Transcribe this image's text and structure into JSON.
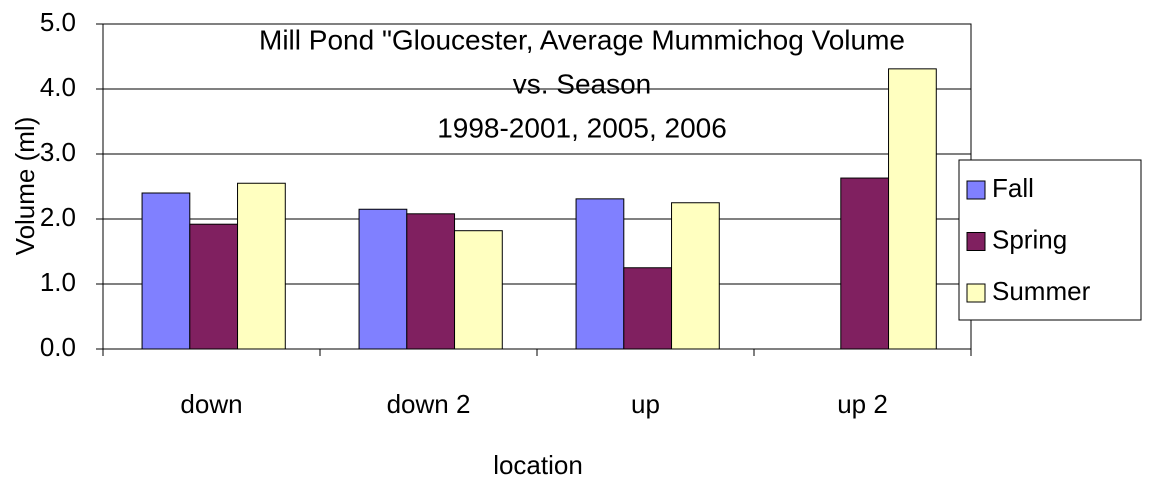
{
  "chart_data": {
    "type": "bar",
    "title": [
      "Mill Pond \"Gloucester, Average Mummichog Volume",
      "vs. Season",
      "1998-2001, 2005, 2006"
    ],
    "x_label": "location",
    "y_label": "Volume (ml)",
    "categories": [
      "down",
      "down 2",
      "up",
      "up 2"
    ],
    "series": [
      {
        "name": "Fall",
        "color": "#8080ff",
        "values": [
          2.4,
          2.15,
          2.31,
          null
        ]
      },
      {
        "name": "Spring",
        "color": "#802060",
        "values": [
          1.92,
          2.08,
          1.25,
          2.63
        ]
      },
      {
        "name": "Summer",
        "color": "#ffffc0",
        "values": [
          2.55,
          1.82,
          2.25,
          4.31
        ]
      }
    ],
    "ylim": [
      0,
      5
    ],
    "yticks": [
      {
        "value": 0,
        "label": "0.0"
      },
      {
        "value": 1,
        "label": "1.0"
      },
      {
        "value": 2,
        "label": "2.0"
      },
      {
        "value": 3,
        "label": "3.0"
      },
      {
        "value": 4,
        "label": "4.0"
      },
      {
        "value": 5,
        "label": "5.0"
      }
    ],
    "grid": true,
    "legend": "right"
  }
}
